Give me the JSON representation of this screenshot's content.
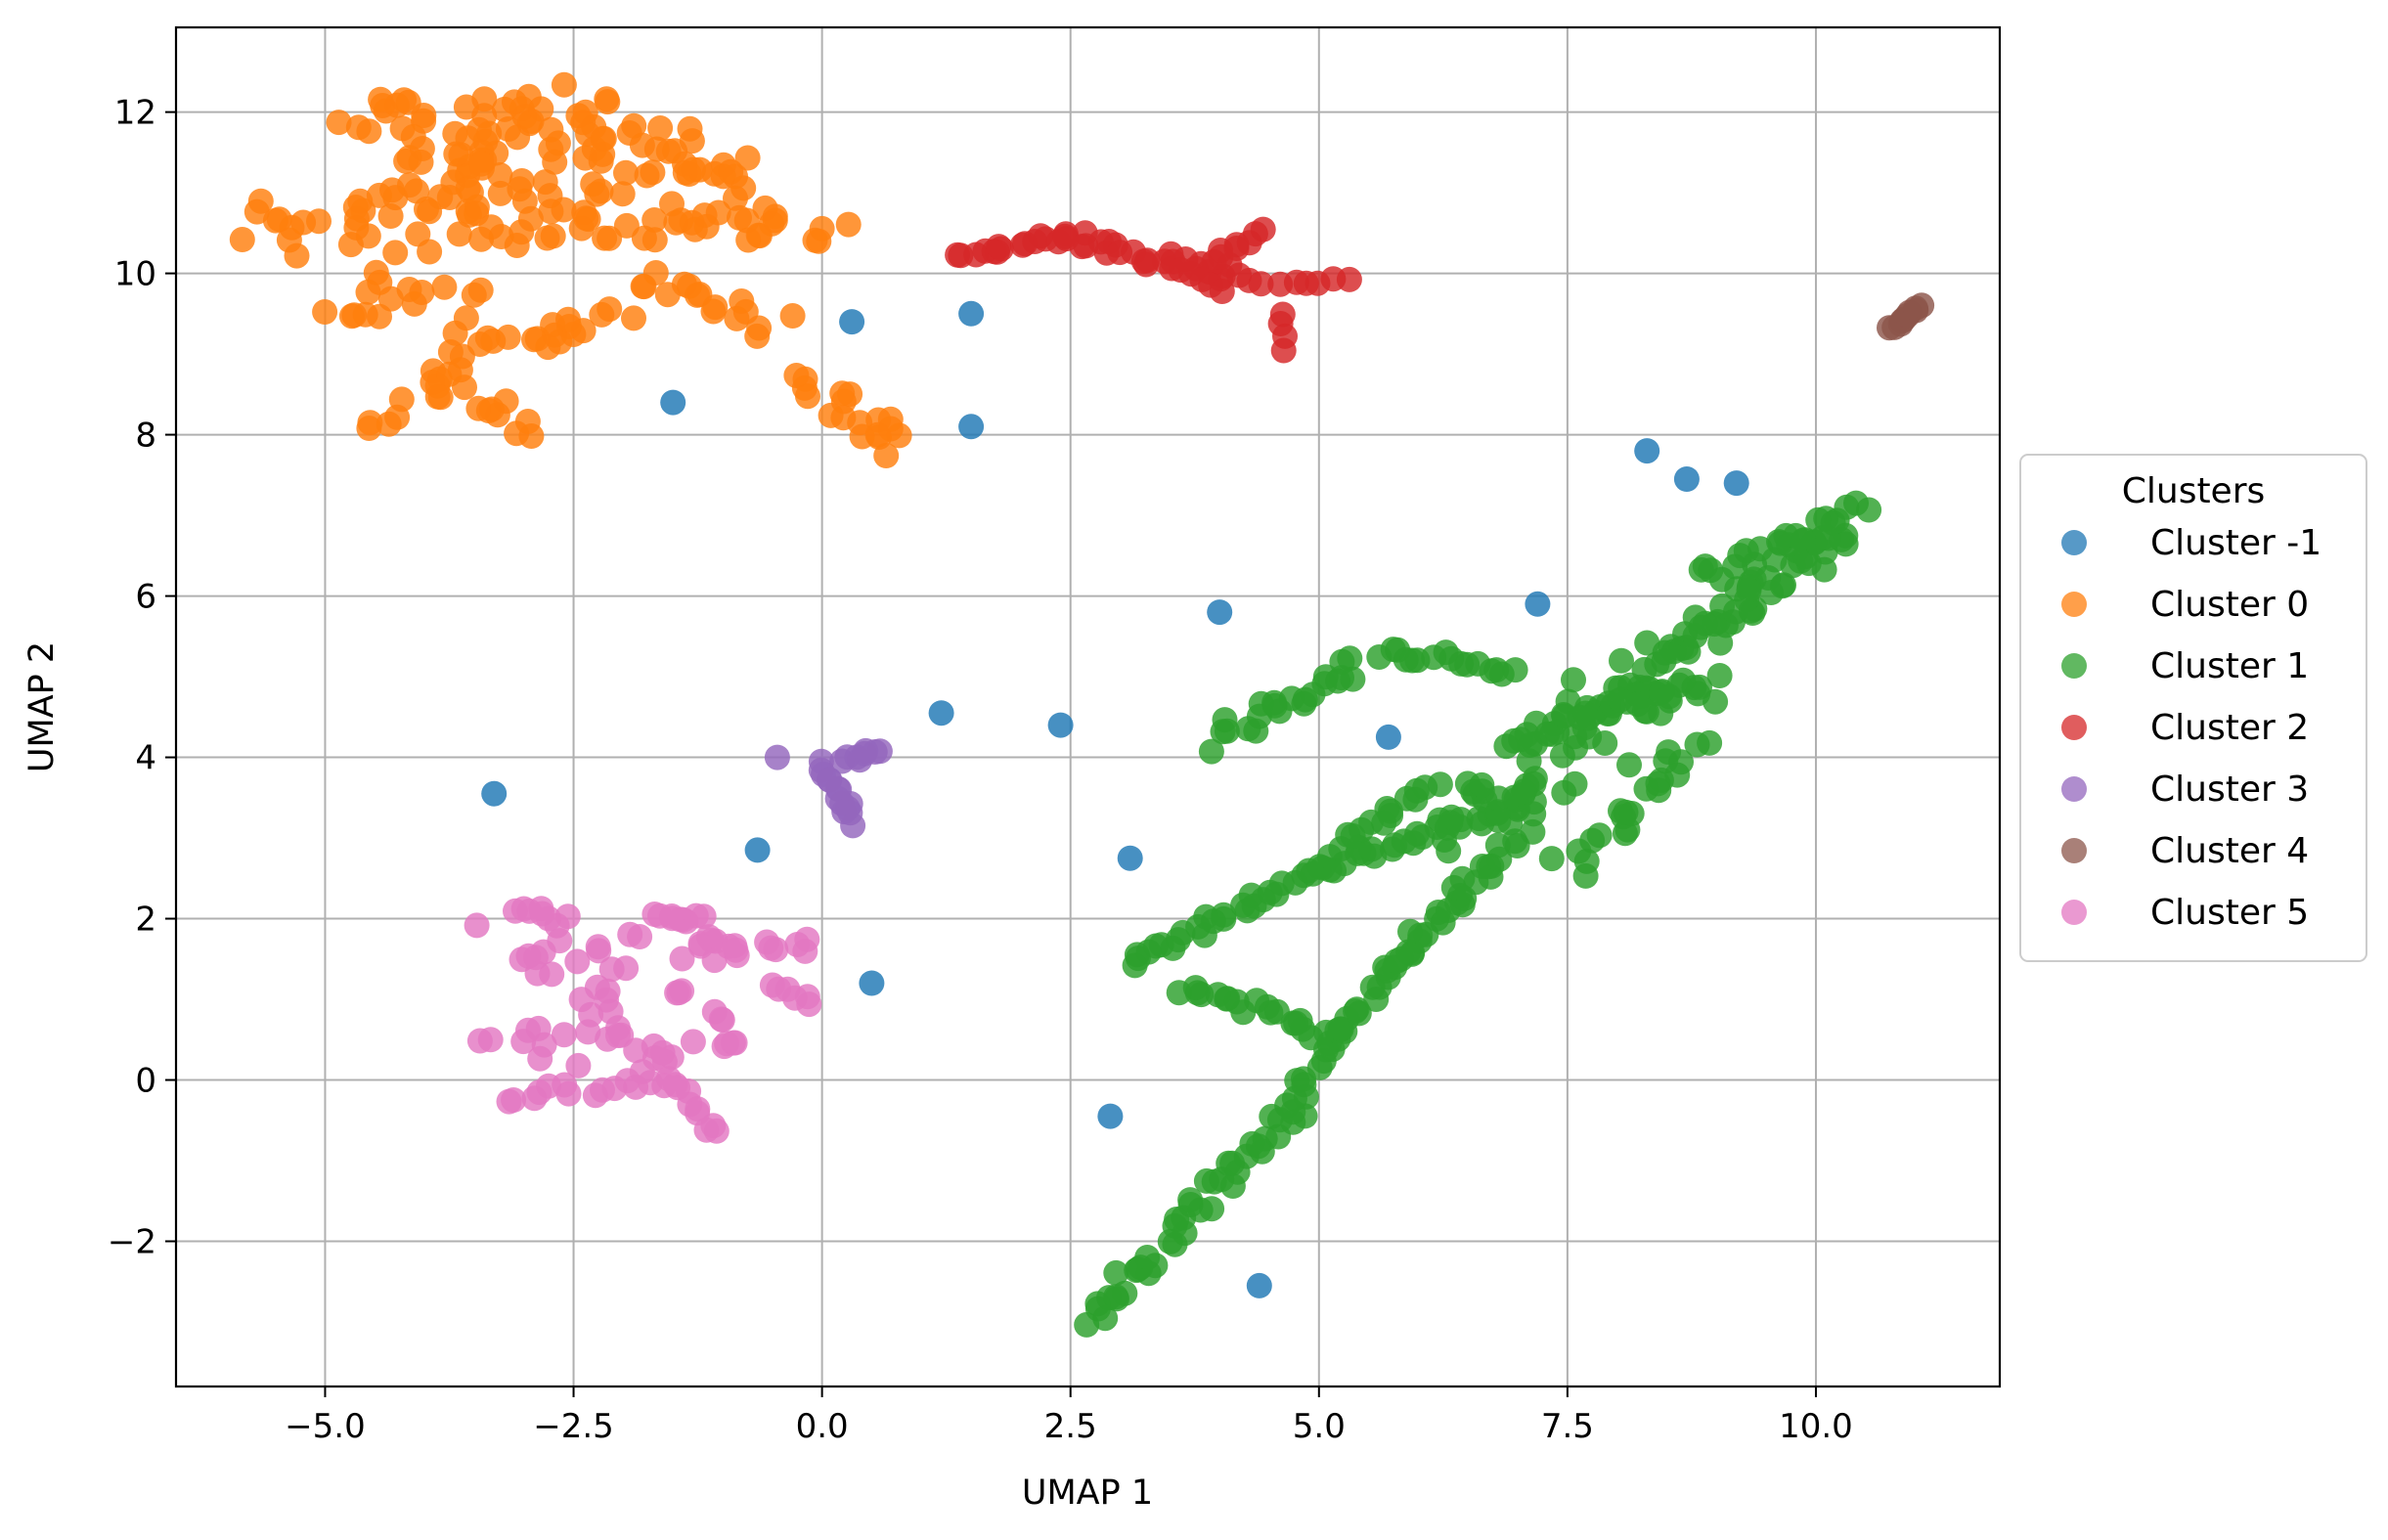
{
  "chart_data": {
    "type": "scatter",
    "title": "",
    "xlabel": "UMAP 1",
    "ylabel": "UMAP 2",
    "xlim": [
      -6.5,
      11.85
    ],
    "ylim": [
      -3.8,
      13.05
    ],
    "grid": true,
    "xticks": [
      -5.0,
      -2.5,
      0.0,
      2.5,
      5.0,
      7.5,
      10.0
    ],
    "xtick_labels": [
      "−5.0",
      "−2.5",
      "0.0",
      "2.5",
      "5.0",
      "7.5",
      "10.0"
    ],
    "yticks": [
      -2,
      0,
      2,
      4,
      6,
      8,
      10,
      12
    ],
    "ytick_labels": [
      "−2",
      "0",
      "2",
      "4",
      "6",
      "8",
      "10",
      "12"
    ],
    "legend": {
      "title": "Clusters",
      "placement": "center-right-outside"
    },
    "series": [
      {
        "name": "Cluster -1",
        "color": "#1f77b4",
        "points": [
          [
            -3.3,
            3.55
          ],
          [
            -1.5,
            8.4
          ],
          [
            -0.65,
            2.85
          ],
          [
            0.3,
            9.4
          ],
          [
            0.5,
            1.2
          ],
          [
            1.2,
            4.55
          ],
          [
            1.5,
            9.5
          ],
          [
            1.5,
            8.1
          ],
          [
            2.4,
            4.4
          ],
          [
            2.9,
            -0.45
          ],
          [
            3.1,
            2.75
          ],
          [
            4.0,
            5.8
          ],
          [
            4.4,
            -2.55
          ],
          [
            5.7,
            4.25
          ],
          [
            7.2,
            5.9
          ],
          [
            8.3,
            7.8
          ],
          [
            8.7,
            7.45
          ],
          [
            9.2,
            7.4
          ]
        ]
      },
      {
        "name": "Cluster 0",
        "color": "#ff7f0e",
        "segments": [
          {
            "from": [
              -5.6,
              10.5
            ],
            "to": [
              -3.0,
              11.0
            ],
            "n": 40,
            "jitter": 0.55
          },
          {
            "from": [
              -4.7,
              11.9
            ],
            "to": [
              -2.0,
              11.9
            ],
            "n": 40,
            "jitter": 0.35
          },
          {
            "from": [
              -4.2,
              11.3
            ],
            "to": [
              -1.0,
              11.3
            ],
            "n": 45,
            "jitter": 0.45
          },
          {
            "from": [
              -3.8,
              10.6
            ],
            "to": [
              0.2,
              10.6
            ],
            "n": 40,
            "jitter": 0.3
          },
          {
            "from": [
              -5.0,
              9.5
            ],
            "to": [
              -3.5,
              9.8
            ],
            "n": 15,
            "jitter": 0.3
          },
          {
            "from": [
              -4.5,
              8.1
            ],
            "to": [
              -3.6,
              9.0
            ],
            "n": 12,
            "jitter": 0.2
          },
          {
            "from": [
              -3.9,
              8.7
            ],
            "to": [
              -2.9,
              8.0
            ],
            "n": 12,
            "jitter": 0.2
          },
          {
            "from": [
              -3.6,
              9.2
            ],
            "to": [
              -2.5,
              9.2
            ],
            "n": 10,
            "jitter": 0.1
          },
          {
            "from": [
              -2.8,
              9.2
            ],
            "to": [
              -1.7,
              9.9
            ],
            "n": 12,
            "jitter": 0.25
          },
          {
            "from": [
              -1.4,
              9.8
            ],
            "to": [
              -0.5,
              9.3
            ],
            "n": 12,
            "jitter": 0.2
          },
          {
            "from": [
              -0.1,
              8.8
            ],
            "to": [
              0.8,
              7.8
            ],
            "n": 18,
            "jitter": 0.25
          },
          {
            "from": [
              -2.0,
              11.8
            ],
            "to": [
              -0.5,
              10.8
            ],
            "n": 15,
            "jitter": 0.3
          }
        ]
      },
      {
        "name": "Cluster 1",
        "color": "#2ca02c",
        "segments": [
          {
            "from": [
              2.7,
              -3.0
            ],
            "to": [
              4.6,
              -0.5
            ],
            "n": 40,
            "jitter": 0.15
          },
          {
            "from": [
              4.6,
              -0.5
            ],
            "to": [
              5.8,
              1.5
            ],
            "n": 30,
            "jitter": 0.12
          },
          {
            "from": [
              5.8,
              1.5
            ],
            "to": [
              7.0,
              3.0
            ],
            "n": 28,
            "jitter": 0.15
          },
          {
            "from": [
              3.1,
              1.45
            ],
            "to": [
              5.0,
              2.6
            ],
            "n": 28,
            "jitter": 0.1
          },
          {
            "from": [
              5.0,
              2.6
            ],
            "to": [
              7.0,
              3.4
            ],
            "n": 30,
            "jitter": 0.12
          },
          {
            "from": [
              3.6,
              1.1
            ],
            "to": [
              5.2,
              0.6
            ],
            "n": 20,
            "jitter": 0.1
          },
          {
            "from": [
              5.2,
              2.9
            ],
            "to": [
              6.2,
              3.7
            ],
            "n": 14,
            "jitter": 0.12
          },
          {
            "from": [
              4.0,
              4.2
            ],
            "to": [
              5.4,
              5.2
            ],
            "n": 22,
            "jitter": 0.15
          },
          {
            "from": [
              5.6,
              5.3
            ],
            "to": [
              7.0,
              5.1
            ],
            "n": 16,
            "jitter": 0.08
          },
          {
            "from": [
              6.5,
              3.2
            ],
            "to": [
              8.5,
              5.2
            ],
            "n": 60,
            "jitter": 0.45
          },
          {
            "from": [
              7.5,
              2.6
            ],
            "to": [
              8.8,
              4.2
            ],
            "n": 22,
            "jitter": 0.2
          },
          {
            "from": [
              7.0,
              4.2
            ],
            "to": [
              9.0,
              4.9
            ],
            "n": 25,
            "jitter": 0.2
          },
          {
            "from": [
              8.5,
              5.2
            ],
            "to": [
              10.3,
              6.9
            ],
            "n": 50,
            "jitter": 0.28
          },
          {
            "from": [
              8.8,
              6.3
            ],
            "to": [
              10.5,
              7.05
            ],
            "n": 20,
            "jitter": 0.15
          }
        ]
      },
      {
        "name": "Cluster 2",
        "color": "#d62728",
        "segments": [
          {
            "from": [
              1.4,
              10.2
            ],
            "to": [
              2.6,
              10.5
            ],
            "n": 18,
            "jitter": 0.08
          },
          {
            "from": [
              2.6,
              10.4
            ],
            "to": [
              4.2,
              10.0
            ],
            "n": 22,
            "jitter": 0.12
          },
          {
            "from": [
              4.0,
              10.1
            ],
            "to": [
              4.4,
              10.6
            ],
            "n": 8,
            "jitter": 0.08
          },
          {
            "from": [
              4.3,
              9.9
            ],
            "to": [
              5.3,
              9.9
            ],
            "n": 8,
            "jitter": 0.05
          },
          {
            "from": [
              4.6,
              9.5
            ],
            "to": [
              4.65,
              9.05
            ],
            "n": 4,
            "jitter": 0.05
          },
          {
            "from": [
              3.5,
              10.15
            ],
            "to": [
              4.0,
              9.75
            ],
            "n": 6,
            "jitter": 0.05
          }
        ]
      },
      {
        "name": "Cluster 3",
        "color": "#9467bd",
        "segments": [
          {
            "from": [
              -0.45,
              4.0
            ],
            "to": [
              -0.45,
              4.0
            ],
            "n": 1,
            "jitter": 0.0
          },
          {
            "from": [
              0.0,
              3.9
            ],
            "to": [
              0.3,
              3.2
            ],
            "n": 14,
            "jitter": 0.1
          },
          {
            "from": [
              0.2,
              3.95
            ],
            "to": [
              0.55,
              4.1
            ],
            "n": 8,
            "jitter": 0.05
          }
        ]
      },
      {
        "name": "Cluster 4",
        "color": "#8c564b",
        "segments": [
          {
            "from": [
              10.75,
              9.3
            ],
            "to": [
              11.05,
              9.6
            ],
            "n": 10,
            "jitter": 0.03
          }
        ]
      },
      {
        "name": "Cluster 5",
        "color": "#e377c2",
        "segments": [
          {
            "from": [
              -3.2,
              1.5
            ],
            "to": [
              -1.2,
              1.5
            ],
            "n": 30,
            "jitter": 0.55
          },
          {
            "from": [
              -3.1,
              0.5
            ],
            "to": [
              -1.0,
              0.5
            ],
            "n": 30,
            "jitter": 0.5
          },
          {
            "from": [
              -3.2,
              -0.25
            ],
            "to": [
              -1.5,
              0.0
            ],
            "n": 15,
            "jitter": 0.12
          },
          {
            "from": [
              -3.1,
              2.1
            ],
            "to": [
              -2.7,
              2.0
            ],
            "n": 6,
            "jitter": 0.08
          },
          {
            "from": [
              -1.7,
              2.0
            ],
            "to": [
              -1.2,
              2.05
            ],
            "n": 8,
            "jitter": 0.1
          },
          {
            "from": [
              -1.2,
              1.6
            ],
            "to": [
              -0.1,
              1.6
            ],
            "n": 12,
            "jitter": 0.15
          },
          {
            "from": [
              -0.5,
              1.2
            ],
            "to": [
              -0.1,
              0.9
            ],
            "n": 6,
            "jitter": 0.08
          },
          {
            "from": [
              -1.4,
              -0.1
            ],
            "to": [
              -1.1,
              -0.7
            ],
            "n": 8,
            "jitter": 0.08
          },
          {
            "from": [
              -0.9,
              0.45
            ],
            "to": [
              -0.9,
              0.45
            ],
            "n": 2,
            "jitter": 0.05
          }
        ]
      }
    ]
  }
}
